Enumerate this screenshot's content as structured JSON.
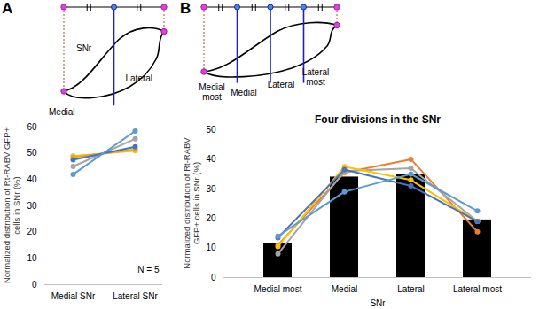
{
  "chart_data": [
    {
      "panel": "A",
      "type": "line",
      "marker": "circle",
      "diagram_labels": [
        "SNr",
        "Medial",
        "Lateral"
      ],
      "categories": [
        "Medial SNr",
        "Lateral SNr"
      ],
      "y_label": "Normalized distribution of Rt-RABV GFP+ cells in SNr (%)",
      "annotation": "N = 5",
      "ylim": [
        0,
        60
      ],
      "yticks": [
        0,
        10,
        20,
        30,
        40,
        50,
        60
      ],
      "series": [
        {
          "color": "#ffc000",
          "values": [
            49,
            51
          ]
        },
        {
          "color": "#e6a817",
          "values": [
            48.5,
            51.5
          ]
        },
        {
          "color": "#a5a5a5",
          "values": [
            45,
            55.5
          ]
        },
        {
          "color": "#4472c4",
          "values": [
            47.5,
            52.5
          ]
        },
        {
          "color": "#5b9bd5",
          "values": [
            42,
            58.5
          ]
        }
      ]
    },
    {
      "panel": "B",
      "type": "bar",
      "title": "Four divisions in the SNr",
      "diagram_labels": [
        "Medial most",
        "Medial",
        "Lateral",
        "Lateral most"
      ],
      "categories": [
        "Medial most",
        "Medial",
        "Lateral",
        "Lateral most"
      ],
      "x_label": "SNr",
      "y_label": "Normalized distribution of Rt-RABV GFP+ cells in SNr (%)",
      "values": [
        11.5,
        34,
        35,
        19.5
      ],
      "color": "#000000",
      "ylim": [
        0,
        50
      ],
      "yticks": [
        0,
        10,
        20,
        30,
        40,
        50
      ],
      "series": [
        {
          "type": "line",
          "marker": "circle",
          "color": "#ed7d31",
          "values": [
            11,
            35.5,
            40,
            15.5
          ]
        },
        {
          "type": "line",
          "marker": "circle",
          "color": "#a5a5a5",
          "values": [
            8,
            36,
            37,
            19
          ]
        },
        {
          "type": "line",
          "marker": "circle",
          "color": "#ffc000",
          "values": [
            10.5,
            37.5,
            33,
            19
          ]
        },
        {
          "type": "line",
          "marker": "circle",
          "color": "#4472c4",
          "values": [
            13.5,
            36.5,
            31,
            19
          ]
        },
        {
          "type": "line",
          "marker": "circle",
          "color": "#5b9bd5",
          "values": [
            14,
            29,
            35,
            22.5
          ]
        }
      ]
    }
  ]
}
